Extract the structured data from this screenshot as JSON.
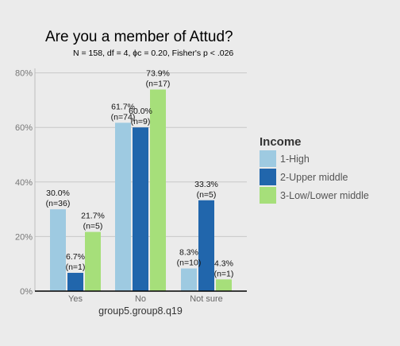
{
  "chart_data": {
    "type": "bar",
    "title": "Are you a member of Attud?",
    "subtitle": "N = 158,  df = 4,  ϕc = 0.20,  Fisher's p < .026",
    "xlabel": "group5.group8.q19",
    "ylabel": "",
    "categories": [
      "Yes",
      "No",
      "Not sure"
    ],
    "ylim": [
      0,
      0.85
    ],
    "yticks": [
      0,
      0.2,
      0.4,
      0.6,
      0.8
    ],
    "ytick_labels": [
      "0%",
      "20%",
      "40%",
      "60%",
      "80%"
    ],
    "grid": true,
    "legend_position": "right",
    "legend_title": "Income",
    "series": [
      {
        "name": "1-High",
        "color": "#9ecae1",
        "values": [
          0.3,
          0.617,
          0.083
        ],
        "pct_labels": [
          "30.0%",
          "61.7%",
          "8.3%"
        ],
        "n_labels": [
          "(n=36)",
          "(n=74)",
          "(n=10)"
        ]
      },
      {
        "name": "2-Upper middle",
        "color": "#2166ac",
        "values": [
          0.067,
          0.6,
          0.333
        ],
        "pct_labels": [
          "6.7%",
          "60.0%",
          "33.3%"
        ],
        "n_labels": [
          "(n=1)",
          "(n=9)",
          "(n=5)"
        ]
      },
      {
        "name": "3-Low/Lower middle",
        "color": "#a6df7a",
        "values": [
          0.217,
          0.739,
          0.043
        ],
        "pct_labels": [
          "21.7%",
          "73.9%",
          "4.3%"
        ],
        "n_labels": [
          "(n=5)",
          "(n=17)",
          "(n=1)"
        ]
      }
    ]
  }
}
